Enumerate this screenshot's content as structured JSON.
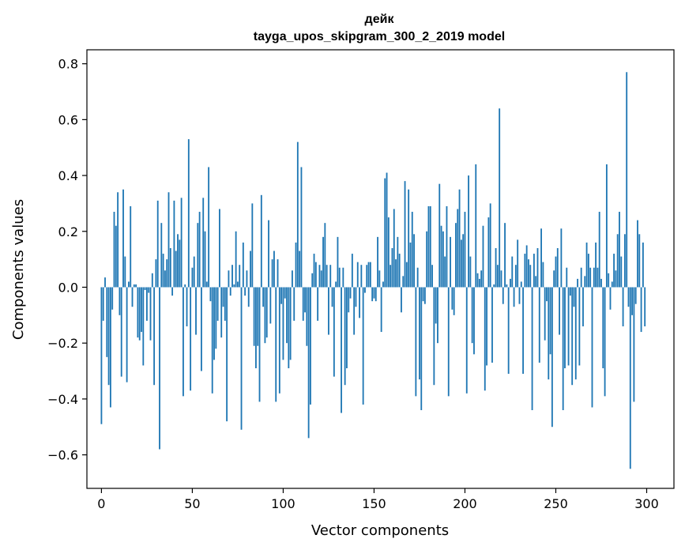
{
  "chart_data": {
    "type": "bar",
    "title": "дейк",
    "subtitle": "tayga_upos_skipgram_300_2_2019 model",
    "xlabel": "Vector components",
    "ylabel": "Components values",
    "xlim": [
      -8,
      315
    ],
    "ylim": [
      -0.72,
      0.85
    ],
    "xticks": [
      0,
      50,
      100,
      150,
      200,
      250,
      300
    ],
    "xtick_labels": [
      "0",
      "50",
      "100",
      "150",
      "200",
      "250",
      "300"
    ],
    "yticks": [
      -0.6,
      -0.4,
      -0.2,
      0.0,
      0.2,
      0.4,
      0.6,
      0.8
    ],
    "ytick_labels": [
      "−0.6",
      "−0.4",
      "−0.2",
      "0.0",
      "0.2",
      "0.4",
      "0.6",
      "0.8"
    ],
    "grid": false,
    "bar_color": "#1f77b4",
    "values": [
      -0.49,
      -0.12,
      0.035,
      -0.25,
      -0.35,
      -0.43,
      -0.08,
      0.27,
      0.22,
      0.34,
      -0.1,
      -0.32,
      0.35,
      0.11,
      -0.34,
      0.02,
      0.29,
      -0.07,
      0.01,
      0.01,
      -0.18,
      -0.19,
      -0.16,
      -0.28,
      -0.01,
      -0.12,
      -0.02,
      -0.19,
      0.05,
      -0.35,
      0.1,
      0.31,
      -0.58,
      0.23,
      0.12,
      0.06,
      0.1,
      0.34,
      0.14,
      -0.03,
      0.31,
      0.13,
      0.19,
      0.17,
      0.32,
      -0.39,
      0.01,
      -0.14,
      0.53,
      -0.37,
      0.07,
      0.11,
      -0.17,
      0.23,
      0.27,
      -0.3,
      0.32,
      0.2,
      0.02,
      0.43,
      -0.05,
      -0.38,
      -0.26,
      -0.22,
      -0.12,
      0.28,
      -0.18,
      -0.07,
      -0.12,
      -0.48,
      0.06,
      -0.03,
      0.08,
      0.01,
      0.2,
      0.02,
      0.08,
      -0.51,
      0.16,
      -0.03,
      0.06,
      -0.07,
      0.13,
      0.3,
      -0.21,
      -0.29,
      -0.21,
      -0.41,
      0.33,
      -0.07,
      -0.2,
      -0.18,
      0.24,
      -0.13,
      0.1,
      0.13,
      -0.41,
      0.1,
      -0.38,
      -0.06,
      -0.26,
      -0.04,
      -0.2,
      -0.29,
      -0.26,
      0.06,
      -0.12,
      0.16,
      0.52,
      0.13,
      0.43,
      -0.12,
      -0.09,
      -0.21,
      -0.54,
      -0.42,
      0.05,
      0.12,
      0.09,
      -0.12,
      0.08,
      0.06,
      0.18,
      0.23,
      0.08,
      -0.17,
      0.08,
      -0.07,
      -0.32,
      0.02,
      0.18,
      0.07,
      -0.45,
      0.07,
      -0.35,
      -0.29,
      -0.09,
      -0.04,
      0.12,
      -0.17,
      -0.07,
      0.09,
      -0.11,
      0.08,
      -0.42,
      -0.02,
      0.08,
      0.09,
      0.09,
      -0.05,
      -0.04,
      -0.05,
      0.18,
      0.06,
      -0.16,
      0.02,
      0.39,
      0.41,
      0.25,
      0.08,
      0.14,
      0.28,
      0.1,
      0.18,
      0.12,
      -0.09,
      0.04,
      0.38,
      0.09,
      0.35,
      0.16,
      0.27,
      0.19,
      -0.39,
      0.07,
      -0.33,
      -0.44,
      -0.05,
      -0.06,
      0.2,
      0.29,
      0.29,
      0.08,
      -0.35,
      -0.13,
      -0.2,
      0.37,
      0.22,
      0.2,
      0.11,
      0.29,
      -0.39,
      0.18,
      -0.08,
      -0.1,
      0.23,
      0.28,
      0.35,
      0.17,
      0.19,
      0.27,
      -0.38,
      0.4,
      0.11,
      -0.2,
      -0.24,
      0.44,
      0.05,
      0.03,
      0.06,
      0.22,
      -0.37,
      -0.28,
      0.25,
      0.3,
      -0.27,
      0.01,
      0.14,
      0.08,
      0.64,
      0.06,
      -0.06,
      0.23,
      0.01,
      -0.31,
      0.03,
      0.11,
      -0.07,
      0.08,
      0.17,
      -0.06,
      0.02,
      -0.31,
      0.12,
      0.15,
      0.1,
      0.08,
      -0.44,
      0.12,
      0.04,
      0.14,
      -0.27,
      0.21,
      0.09,
      -0.19,
      -0.05,
      -0.33,
      -0.24,
      -0.5,
      0.06,
      0.11,
      0.14,
      -0.17,
      0.21,
      -0.44,
      -0.29,
      0.07,
      -0.28,
      -0.03,
      -0.35,
      -0.07,
      -0.33,
      0.03,
      -0.28,
      0.07,
      -0.14,
      0.04,
      0.16,
      0.12,
      0.07,
      -0.43,
      0.07,
      0.16,
      0.07,
      0.27,
      0.03,
      -0.29,
      -0.39,
      0.44,
      0.05,
      -0.08,
      0.02,
      0.12,
      0.06,
      0.19,
      0.27,
      0.11,
      -0.14,
      0.19,
      0.77,
      -0.07,
      -0.65,
      -0.1,
      -0.41,
      -0.06,
      0.24,
      0.19,
      -0.16,
      0.16,
      -0.14
    ]
  }
}
